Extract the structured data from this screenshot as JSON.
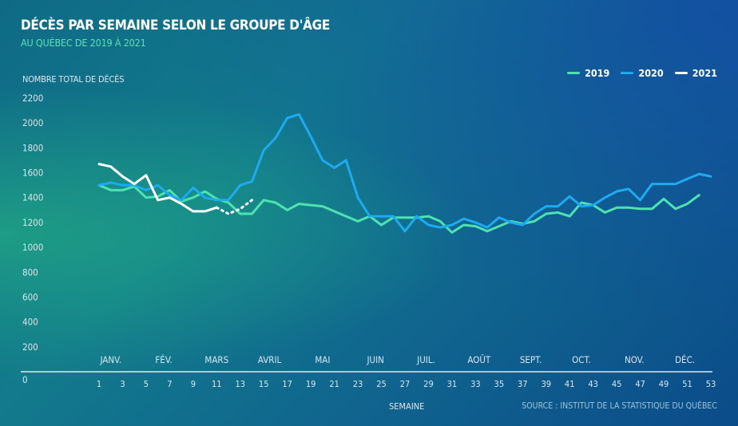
{
  "header": {
    "title": "DÉCÈS PAR SEMAINE SELON LE GROUPE D'ÂGE",
    "subtitle": "AU QUÉBEC DE 2019 À 2021"
  },
  "axis": {
    "ylabel": "NOMBRE TOTAL DE DÉCÈS",
    "xlabel": "SEMAINE"
  },
  "source": "SOURCE : INSTITUT DE LA STATISTIQUE DU QUÉBEC",
  "colors": {
    "2019": "#4de3b0",
    "2020": "#1eaaf0",
    "2021": "#ffffff"
  },
  "chart_data": {
    "type": "line",
    "xlabel": "SEMAINE",
    "ylabel": "NOMBRE TOTAL DE DÉCÈS",
    "xlim": [
      1,
      53
    ],
    "ylim": [
      0,
      2200
    ],
    "yticks": [
      0,
      200,
      400,
      600,
      800,
      1000,
      1200,
      1400,
      1600,
      1800,
      2000,
      2200
    ],
    "xticks": [
      1,
      3,
      5,
      7,
      9,
      11,
      13,
      15,
      17,
      19,
      21,
      23,
      25,
      27,
      29,
      31,
      33,
      35,
      37,
      39,
      41,
      43,
      45,
      47,
      49,
      51,
      53
    ],
    "months": [
      {
        "label": "JANV.",
        "week": 2
      },
      {
        "label": "FÉV.",
        "week": 6.5
      },
      {
        "label": "MARS",
        "week": 11
      },
      {
        "label": "AVRIL",
        "week": 15.5
      },
      {
        "label": "MAI",
        "week": 20
      },
      {
        "label": "JUIN",
        "week": 24.5
      },
      {
        "label": "JUIL.",
        "week": 28.8
      },
      {
        "label": "AOÛT",
        "week": 33.3
      },
      {
        "label": "SEPT.",
        "week": 37.7
      },
      {
        "label": "OCT.",
        "week": 42
      },
      {
        "label": "NOV.",
        "week": 46.5
      },
      {
        "label": "DÉC.",
        "week": 50.8
      }
    ],
    "legend_position": "top-right",
    "series": [
      {
        "name": "2019",
        "x": [
          1,
          2,
          3,
          4,
          5,
          6,
          7,
          8,
          9,
          10,
          11,
          12,
          13,
          14,
          15,
          16,
          17,
          18,
          19,
          20,
          21,
          22,
          23,
          24,
          25,
          26,
          27,
          28,
          29,
          30,
          31,
          32,
          33,
          34,
          35,
          36,
          37,
          38,
          39,
          40,
          41,
          42,
          43,
          44,
          45,
          46,
          47,
          48,
          49,
          50,
          51,
          52
        ],
        "values": [
          1500,
          1460,
          1460,
          1490,
          1400,
          1410,
          1460,
          1370,
          1400,
          1450,
          1390,
          1360,
          1270,
          1270,
          1380,
          1360,
          1300,
          1350,
          1340,
          1330,
          1290,
          1250,
          1210,
          1250,
          1180,
          1240,
          1240,
          1240,
          1250,
          1210,
          1120,
          1180,
          1170,
          1130,
          1170,
          1210,
          1190,
          1210,
          1270,
          1280,
          1250,
          1360,
          1340,
          1280,
          1320,
          1320,
          1310,
          1310,
          1390,
          1310,
          1350,
          1420
        ]
      },
      {
        "name": "2020",
        "x": [
          1,
          2,
          3,
          4,
          5,
          6,
          7,
          8,
          9,
          10,
          11,
          12,
          13,
          14,
          15,
          16,
          17,
          18,
          19,
          20,
          21,
          22,
          23,
          24,
          25,
          26,
          27,
          28,
          29,
          30,
          31,
          32,
          33,
          34,
          35,
          36,
          37,
          38,
          39,
          40,
          41,
          42,
          43,
          44,
          45,
          46,
          47,
          48,
          49,
          50,
          51,
          52,
          53
        ],
        "values": [
          1500,
          1520,
          1500,
          1500,
          1460,
          1500,
          1420,
          1380,
          1480,
          1400,
          1380,
          1380,
          1500,
          1530,
          1780,
          1880,
          2040,
          2070,
          1890,
          1700,
          1640,
          1700,
          1400,
          1250,
          1250,
          1250,
          1130,
          1250,
          1180,
          1160,
          1180,
          1230,
          1200,
          1160,
          1240,
          1200,
          1180,
          1270,
          1330,
          1330,
          1410,
          1330,
          1340,
          1400,
          1450,
          1470,
          1380,
          1510,
          1510,
          1510,
          1550,
          1590,
          1570
        ]
      },
      {
        "name": "2021",
        "x": [
          1,
          2,
          3,
          4,
          5,
          6,
          7,
          8,
          9,
          10,
          11
        ],
        "values": [
          1670,
          1650,
          1570,
          1510,
          1580,
          1380,
          1400,
          1350,
          1290,
          1290,
          1320
        ],
        "projected_x": [
          11,
          12,
          13,
          14
        ],
        "projected_values": [
          1320,
          1270,
          1310,
          1380
        ]
      }
    ]
  }
}
